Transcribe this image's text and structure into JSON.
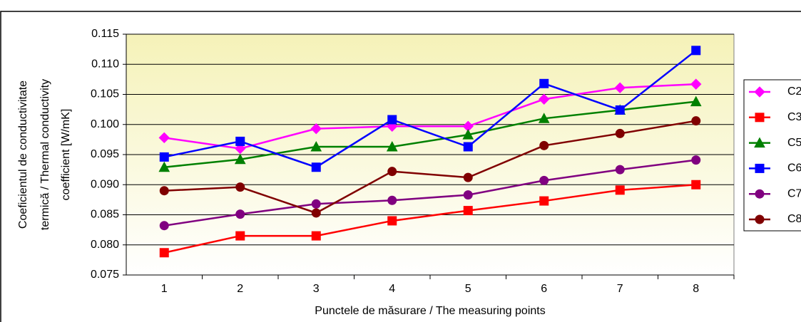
{
  "chart_data": {
    "type": "line",
    "xlabel": "Punctele de măsurare / The measuring points",
    "ylabel": [
      "Coeficientul de conductivitate",
      "termică / Thermal conductivity",
      "coefficient  [W/mK]"
    ],
    "categories": [
      "1",
      "2",
      "3",
      "4",
      "5",
      "6",
      "7",
      "8"
    ],
    "series": [
      {
        "name": "C2",
        "color": "#ff00ff",
        "marker": "diamond",
        "values": [
          0.0978,
          0.096,
          0.0993,
          0.0997,
          0.0997,
          0.1042,
          0.1061,
          0.1067
        ]
      },
      {
        "name": "C3",
        "color": "#ff0000",
        "marker": "square",
        "values": [
          0.0787,
          0.0815,
          0.0815,
          0.084,
          0.0857,
          0.0873,
          0.0891,
          0.09
        ]
      },
      {
        "name": "C5",
        "color": "#008000",
        "marker": "triangle",
        "values": [
          0.0929,
          0.0942,
          0.0963,
          0.0963,
          0.0983,
          0.101,
          0.1024,
          0.1038
        ]
      },
      {
        "name": "C6",
        "color": "#0000ff",
        "marker": "square",
        "values": [
          0.0946,
          0.0972,
          0.0929,
          0.1008,
          0.0963,
          0.1068,
          0.1024,
          0.1123
        ]
      },
      {
        "name": "C7",
        "color": "#800080",
        "marker": "circle",
        "values": [
          0.0832,
          0.0851,
          0.0868,
          0.0874,
          0.0883,
          0.0907,
          0.0925,
          0.0941
        ]
      },
      {
        "name": "C8",
        "color": "#800000",
        "marker": "circle",
        "values": [
          0.089,
          0.0896,
          0.0853,
          0.0922,
          0.0912,
          0.0965,
          0.0985,
          0.1006
        ]
      }
    ],
    "ylim": [
      0.075,
      0.115
    ],
    "yticks": [
      0.075,
      {
        "value": 0.08,
        "label": "0.080"
      },
      0.085,
      {
        "value": 0.09,
        "label": "0.090"
      },
      0.095,
      {
        "value": 0.1,
        "label": "0.100"
      },
      0.105,
      {
        "value": 0.11,
        "label": "0.110"
      },
      0.115
    ],
    "grid": true,
    "legend": "right"
  }
}
